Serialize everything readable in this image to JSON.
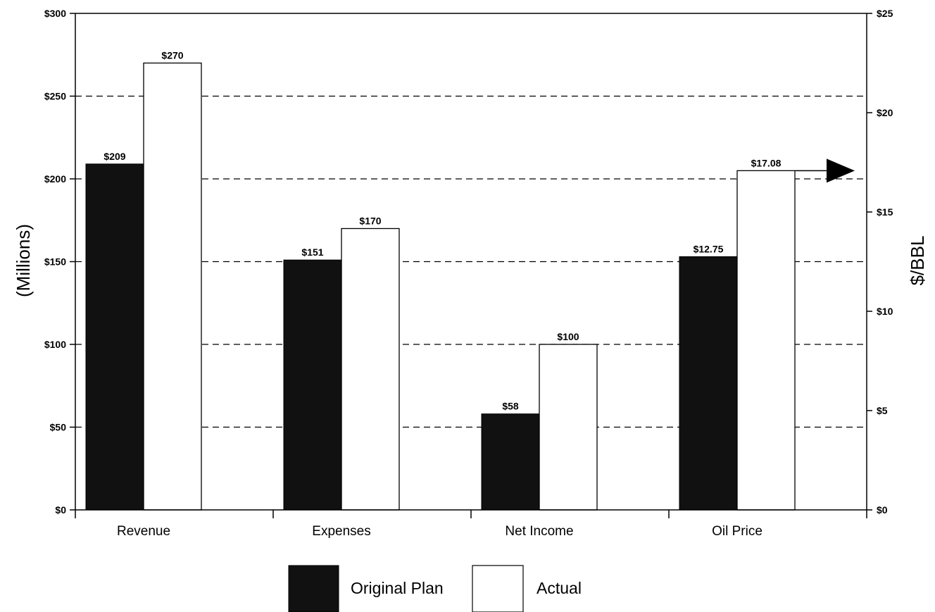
{
  "chart_data": {
    "type": "bar",
    "title": "",
    "categories": [
      "Revenue",
      "Expenses",
      "Net Income",
      "Oil Price"
    ],
    "series": [
      {
        "name": "Original Plan",
        "color": "#111111",
        "values": [
          209,
          151,
          58,
          12.75
        ],
        "labels": [
          "$209",
          "$151",
          "$58",
          "$12.75"
        ]
      },
      {
        "name": "Actual",
        "color": "#ffffff",
        "values": [
          270,
          170,
          100,
          17.08
        ],
        "labels": [
          "$270",
          "$170",
          "$100",
          "$17.08"
        ]
      }
    ],
    "value_axis_for_category": [
      "left",
      "left",
      "left",
      "right"
    ],
    "ylabel": "(Millions)",
    "ylim": [
      0,
      300
    ],
    "yticks": [
      0,
      50,
      100,
      150,
      200,
      250,
      300
    ],
    "ytick_labels": [
      "$0",
      "$50",
      "$100",
      "$150",
      "$200",
      "$250",
      "$300"
    ],
    "y2label": "$/BBL",
    "y2lim": [
      0,
      25
    ],
    "y2ticks": [
      0,
      5,
      10,
      15,
      20,
      25
    ],
    "y2tick_labels": [
      "$0",
      "$5",
      "$10",
      "$15",
      "$20",
      "$25"
    ],
    "grid": "horizontal-dashed",
    "legend_placement": "bottom-center",
    "annotations": [
      "arrow pointing from Oil Price actual bar to right axis"
    ]
  }
}
